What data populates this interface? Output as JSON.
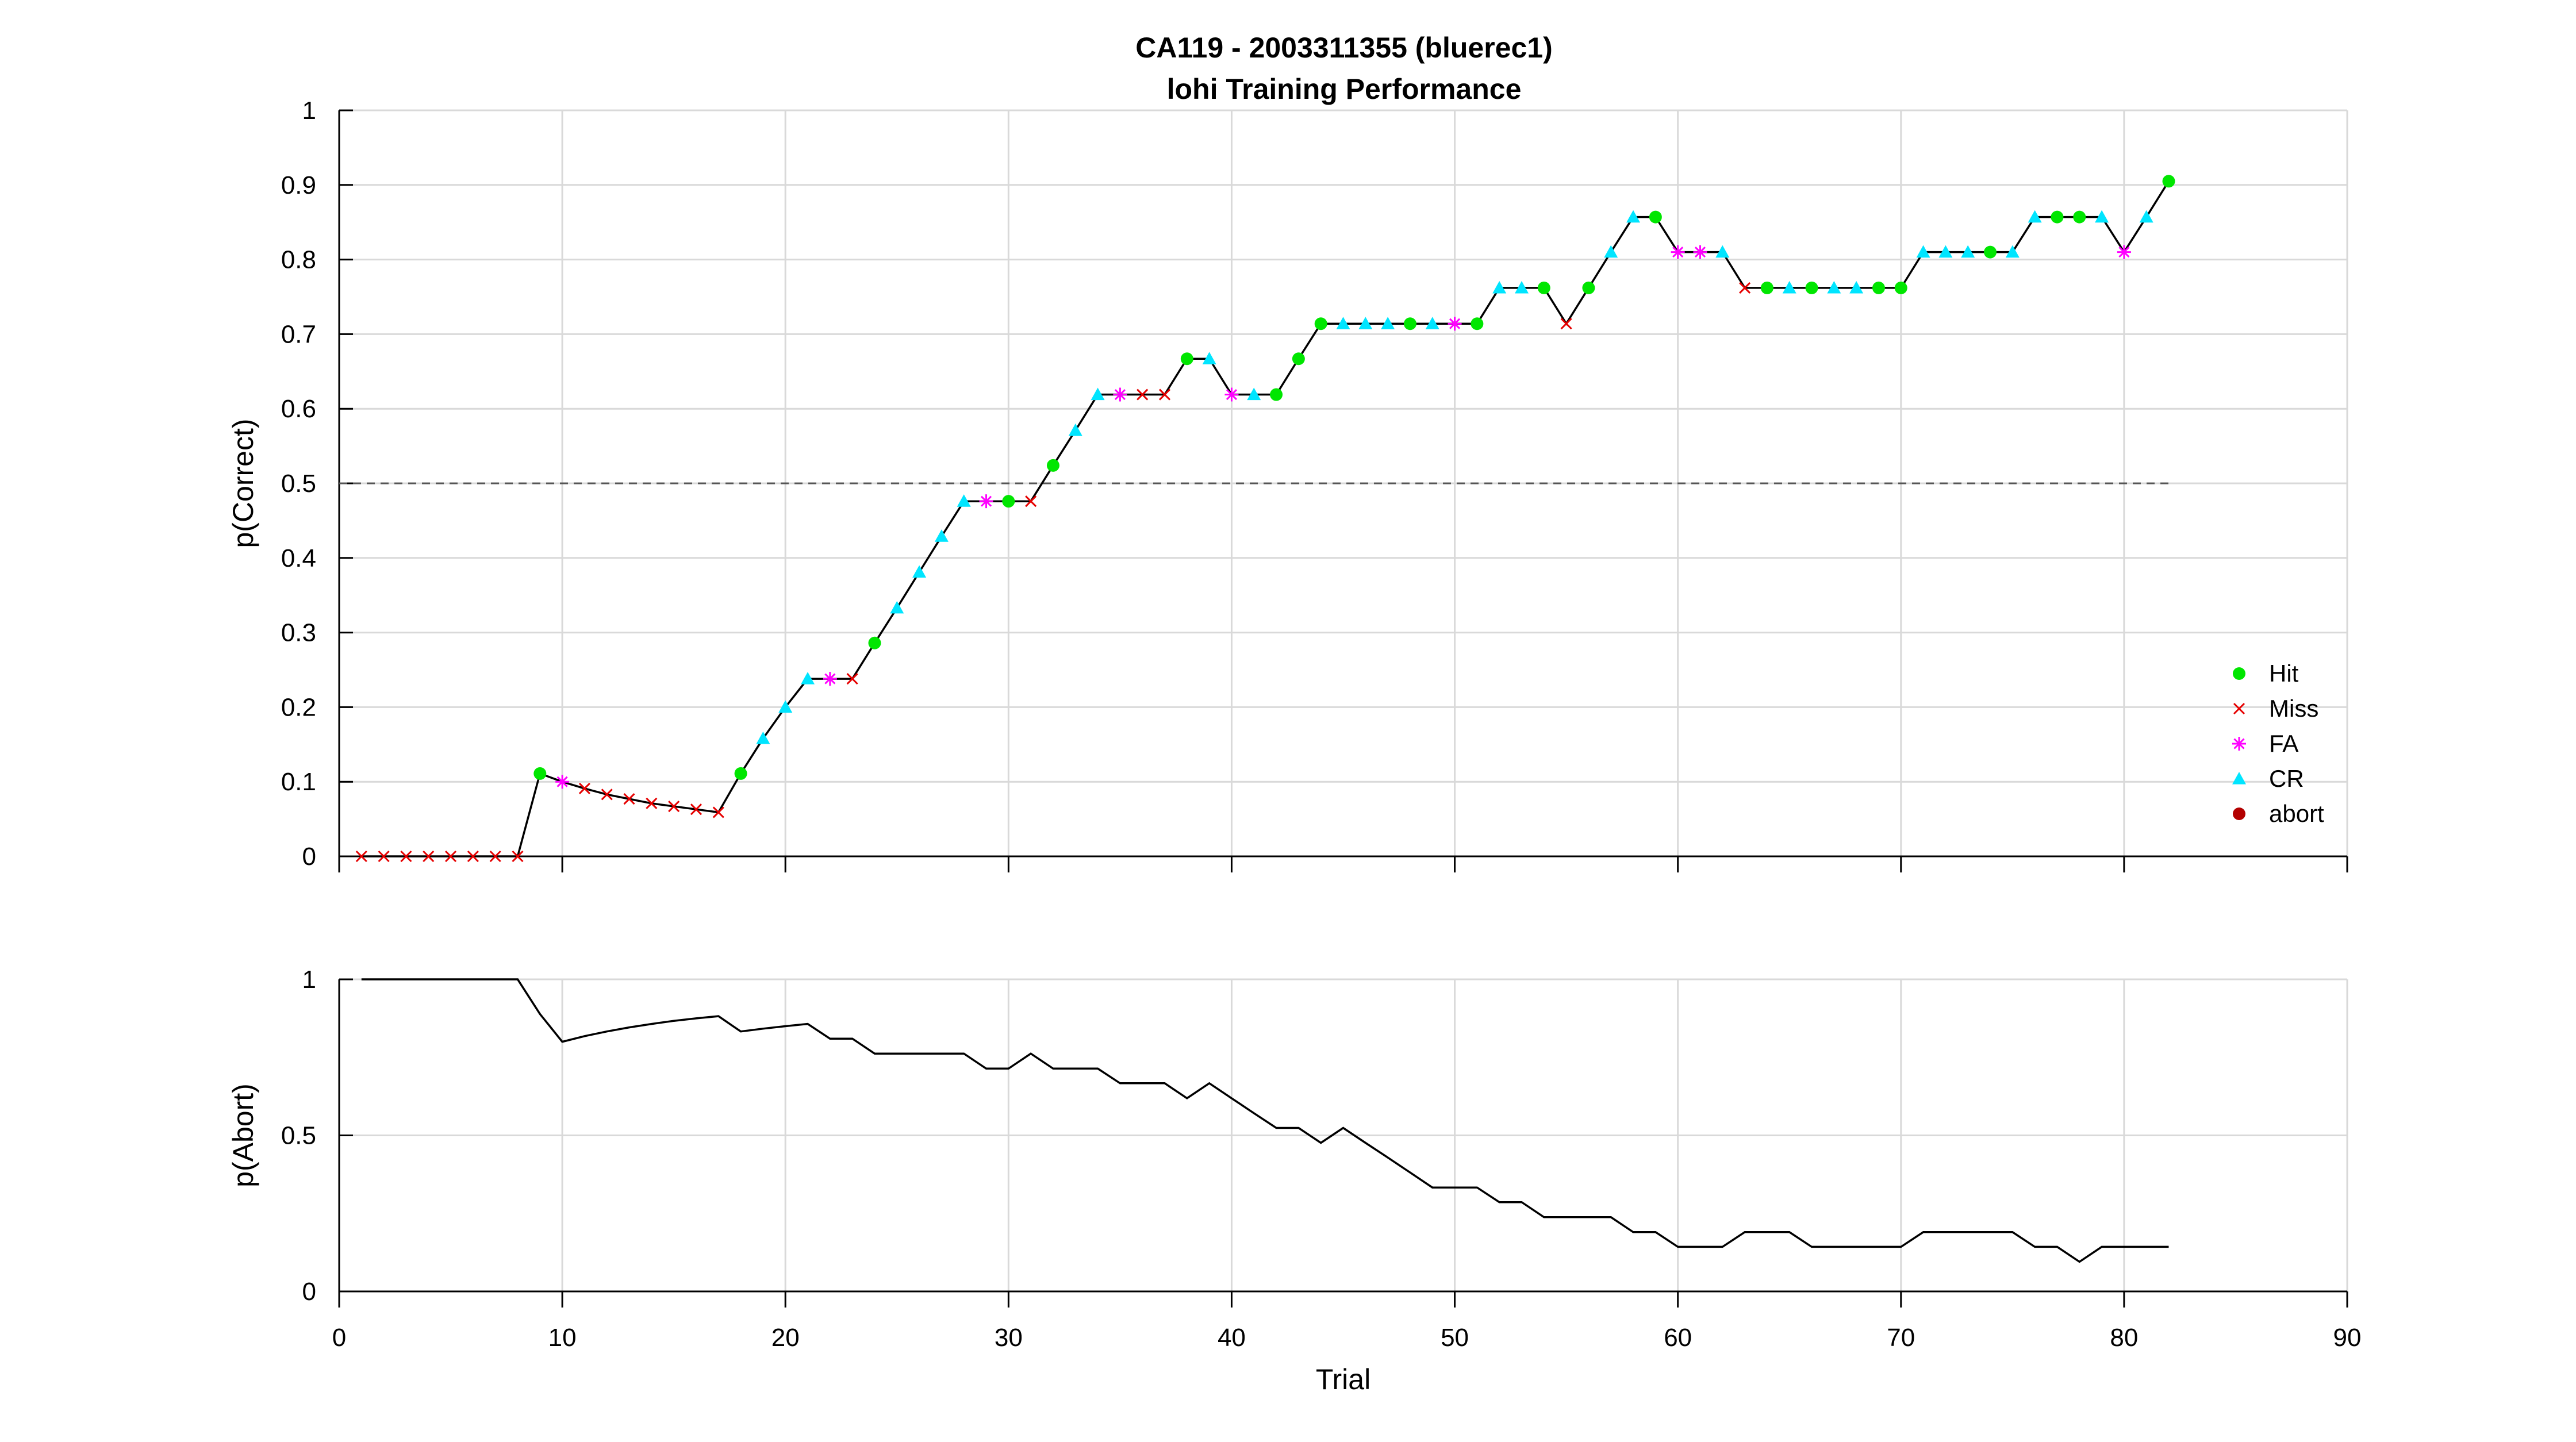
{
  "title": "CA119 - 2003311355 (bluerec1)",
  "subtitle": "lohi Training Performance",
  "colors": {
    "Hit": "#00e600",
    "Miss": "#e60000",
    "FA": "#ff00ff",
    "CR": "#00e5ff",
    "abort": "#b30000",
    "line": "#000000",
    "grid": "#d9d9d9",
    "chance_line": "#555555"
  },
  "chart_data": [
    {
      "type": "line",
      "ylabel": "p(Correct)",
      "xlabel": "",
      "xlim": [
        0,
        90
      ],
      "ylim": [
        0,
        1
      ],
      "grid": true,
      "xticks": [
        "0",
        "10",
        "20",
        "30",
        "40",
        "50",
        "60",
        "70",
        "80",
        "90"
      ],
      "yticks": [
        "0",
        "0.1",
        "0.2",
        "0.3",
        "0.4",
        "0.5",
        "0.6",
        "0.7",
        "0.8",
        "0.9",
        "1"
      ],
      "chance_level": 0.5,
      "chance_range": [
        0,
        82
      ],
      "x": [
        1,
        2,
        3,
        4,
        5,
        6,
        7,
        8,
        9,
        10,
        11,
        12,
        13,
        14,
        15,
        16,
        17,
        18,
        19,
        20,
        21,
        22,
        23,
        24,
        25,
        26,
        27,
        28,
        29,
        30,
        31,
        32,
        33,
        34,
        35,
        36,
        37,
        38,
        39,
        40,
        41,
        42,
        43,
        44,
        45,
        46,
        47,
        48,
        49,
        50,
        51,
        52,
        53,
        54,
        55,
        56,
        57,
        58,
        59,
        60,
        61,
        62,
        63,
        64,
        65,
        66,
        67,
        68,
        69,
        70,
        71,
        72,
        73,
        74,
        75,
        76,
        77,
        78,
        79,
        80,
        81,
        82
      ],
      "y": [
        0,
        0,
        0,
        0,
        0,
        0,
        0,
        0,
        0.111,
        0.1,
        0.091,
        0.083,
        0.077,
        0.071,
        0.067,
        0.063,
        0.059,
        0.111,
        0.158,
        0.2,
        0.238,
        0.238,
        0.238,
        0.286,
        0.333,
        0.381,
        0.429,
        0.476,
        0.476,
        0.476,
        0.476,
        0.524,
        0.571,
        0.619,
        0.619,
        0.619,
        0.619,
        0.667,
        0.667,
        0.619,
        0.619,
        0.619,
        0.667,
        0.714,
        0.714,
        0.714,
        0.714,
        0.714,
        0.714,
        0.714,
        0.714,
        0.762,
        0.762,
        0.762,
        0.714,
        0.762,
        0.81,
        0.857,
        0.857,
        0.81,
        0.81,
        0.81,
        0.762,
        0.762,
        0.762,
        0.762,
        0.762,
        0.762,
        0.762,
        0.762,
        0.81,
        0.81,
        0.81,
        0.81,
        0.81,
        0.857,
        0.857,
        0.857,
        0.857,
        0.81,
        0.857,
        0.905
      ],
      "outcome": [
        "Miss",
        "Miss",
        "Miss",
        "Miss",
        "Miss",
        "Miss",
        "Miss",
        "Miss",
        "Hit",
        "FA",
        "Miss",
        "Miss",
        "Miss",
        "Miss",
        "Miss",
        "Miss",
        "Miss",
        "Hit",
        "CR",
        "CR",
        "CR",
        "FA",
        "Miss",
        "Hit",
        "CR",
        "CR",
        "CR",
        "CR",
        "FA",
        "Hit",
        "Miss",
        "Hit",
        "CR",
        "CR",
        "FA",
        "Miss",
        "Miss",
        "Hit",
        "CR",
        "FA",
        "CR",
        "Hit",
        "Hit",
        "Hit",
        "CR",
        "CR",
        "CR",
        "Hit",
        "CR",
        "FA",
        "Hit",
        "CR",
        "CR",
        "Hit",
        "Miss",
        "Hit",
        "CR",
        "CR",
        "Hit",
        "FA",
        "FA",
        "CR",
        "Miss",
        "Hit",
        "CR",
        "Hit",
        "CR",
        "CR",
        "Hit",
        "Hit",
        "CR",
        "CR",
        "CR",
        "Hit",
        "CR",
        "CR",
        "Hit",
        "Hit",
        "CR",
        "FA",
        "CR",
        "Hit"
      ],
      "legend": [
        "Hit",
        "Miss",
        "FA",
        "CR",
        "abort"
      ],
      "legend_position": "lower-right"
    },
    {
      "type": "line",
      "ylabel": "p(Abort)",
      "xlabel": "Trial",
      "xlim": [
        0,
        90
      ],
      "ylim": [
        0,
        1
      ],
      "grid": true,
      "xticks": [
        "0",
        "10",
        "20",
        "30",
        "40",
        "50",
        "60",
        "70",
        "80",
        "90"
      ],
      "yticks": [
        "0",
        "0.5",
        "1"
      ],
      "x": [
        1,
        2,
        3,
        4,
        5,
        6,
        7,
        8,
        9,
        10,
        11,
        12,
        13,
        14,
        15,
        16,
        17,
        18,
        19,
        20,
        21,
        22,
        23,
        24,
        25,
        26,
        27,
        28,
        29,
        30,
        31,
        32,
        33,
        34,
        35,
        36,
        37,
        38,
        39,
        40,
        41,
        42,
        43,
        44,
        45,
        46,
        47,
        48,
        49,
        50,
        51,
        52,
        53,
        54,
        55,
        56,
        57,
        58,
        59,
        60,
        61,
        62,
        63,
        64,
        65,
        66,
        67,
        68,
        69,
        70,
        71,
        72,
        73,
        74,
        75,
        76,
        77,
        78,
        79,
        80,
        81,
        82
      ],
      "y": [
        1,
        1,
        1,
        1,
        1,
        1,
        1,
        1,
        0.889,
        0.8,
        0.818,
        0.833,
        0.846,
        0.857,
        0.867,
        0.875,
        0.882,
        0.833,
        0.842,
        0.85,
        0.857,
        0.81,
        0.81,
        0.762,
        0.762,
        0.762,
        0.762,
        0.762,
        0.714,
        0.714,
        0.762,
        0.714,
        0.714,
        0.714,
        0.667,
        0.667,
        0.667,
        0.619,
        0.667,
        0.619,
        0.571,
        0.524,
        0.524,
        0.476,
        0.524,
        0.476,
        0.429,
        0.381,
        0.333,
        0.333,
        0.333,
        0.286,
        0.286,
        0.238,
        0.238,
        0.238,
        0.238,
        0.19,
        0.19,
        0.143,
        0.143,
        0.143,
        0.19,
        0.19,
        0.19,
        0.143,
        0.143,
        0.143,
        0.143,
        0.143,
        0.19,
        0.19,
        0.19,
        0.19,
        0.19,
        0.143,
        0.143,
        0.095,
        0.143,
        0.143,
        0.143,
        0.143
      ]
    }
  ]
}
